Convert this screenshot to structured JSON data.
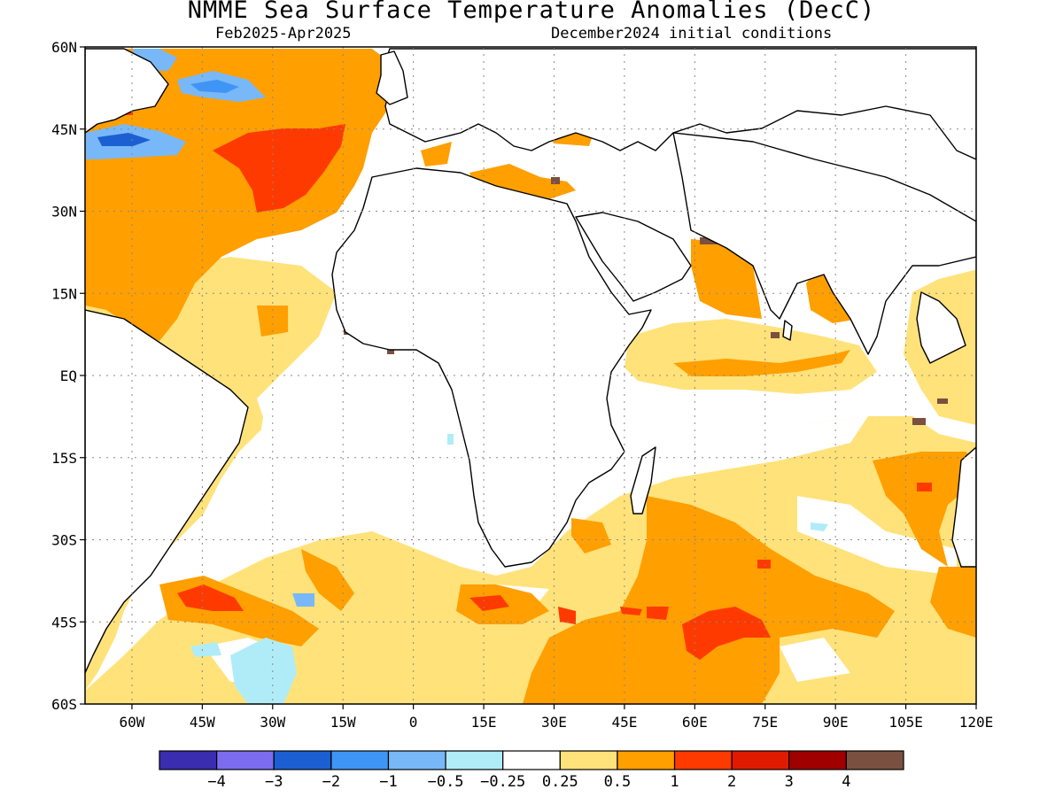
{
  "title": "NMME Sea Surface Temperature Anomalies (DecC)",
  "subtitle_left": "Feb2025-Apr2025",
  "subtitle_right": "December2024 initial conditions",
  "map": {
    "lon_range": [
      -70,
      120
    ],
    "lat_range": [
      -60,
      60
    ],
    "gridlines": "dotted",
    "lat_ticks": [
      {
        "value": 60,
        "label": "60N"
      },
      {
        "value": 45,
        "label": "45N"
      },
      {
        "value": 30,
        "label": "30N"
      },
      {
        "value": 15,
        "label": "15N"
      },
      {
        "value": 0,
        "label": "EQ"
      },
      {
        "value": -15,
        "label": "15S"
      },
      {
        "value": -30,
        "label": "30S"
      },
      {
        "value": -45,
        "label": "45S"
      },
      {
        "value": -60,
        "label": "60S"
      }
    ],
    "lon_ticks": [
      {
        "value": -60,
        "label": "60W"
      },
      {
        "value": -45,
        "label": "45W"
      },
      {
        "value": -30,
        "label": "30W"
      },
      {
        "value": -15,
        "label": "15W"
      },
      {
        "value": 0,
        "label": "0"
      },
      {
        "value": 15,
        "label": "15E"
      },
      {
        "value": 30,
        "label": "30E"
      },
      {
        "value": 45,
        "label": "45E"
      },
      {
        "value": 60,
        "label": "60E"
      },
      {
        "value": 75,
        "label": "75E"
      },
      {
        "value": 90,
        "label": "90E"
      },
      {
        "value": 105,
        "label": "105E"
      },
      {
        "value": 120,
        "label": "120E"
      }
    ]
  },
  "colorbar": {
    "colors": [
      "#3a2db0",
      "#7b6cf0",
      "#1c5fd2",
      "#3f95f5",
      "#78b8f8",
      "#b0ecf8",
      "#ffffff",
      "#ffe27a",
      "#ff9f00",
      "#ff3a00",
      "#e01a00",
      "#a00000",
      "#7a5040"
    ],
    "labels": [
      "-4",
      "-3",
      "-2",
      "-1",
      "-0.5",
      "-0.25",
      "0.25",
      "0.5",
      "1",
      "2",
      "3",
      "4"
    ]
  }
}
